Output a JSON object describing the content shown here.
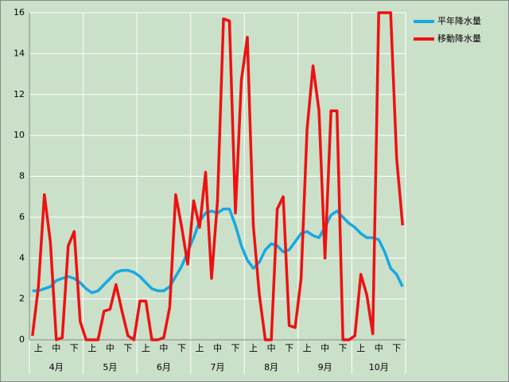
{
  "chart_data": {
    "type": "line",
    "categories": [
      null,
      "上",
      null,
      null,
      "中",
      null,
      null,
      "下",
      null,
      null,
      "上",
      null,
      null,
      "中",
      null,
      null,
      "下",
      null,
      null,
      "上",
      null,
      null,
      "中",
      null,
      null,
      "下",
      null,
      null,
      "上",
      null,
      null,
      "中",
      null,
      null,
      "下",
      null,
      null,
      "上",
      null,
      null,
      "中",
      null,
      null,
      "下",
      null,
      null,
      "上",
      null,
      null,
      "中",
      null,
      null,
      "下",
      null,
      null,
      "上",
      null,
      null,
      "中",
      null,
      null,
      "下",
      null
    ],
    "groups": [
      "4月",
      "5月",
      "6月",
      "7月",
      "8月",
      "9月",
      "10月"
    ],
    "ylim": [
      0,
      16
    ],
    "yticks": [
      0,
      2,
      4,
      6,
      8,
      10,
      12,
      14,
      16
    ],
    "grid": true,
    "legend": "right",
    "series": [
      {
        "name": "平年降水量",
        "color": "#17a8e3",
        "values": [
          2.4,
          2.4,
          2.5,
          2.6,
          2.9,
          3.0,
          3.1,
          3.0,
          2.8,
          2.5,
          2.3,
          2.4,
          2.7,
          3.0,
          3.3,
          3.4,
          3.4,
          3.3,
          3.1,
          2.8,
          2.5,
          2.4,
          2.4,
          2.6,
          3.1,
          3.6,
          4.3,
          5.0,
          5.8,
          6.2,
          6.3,
          6.2,
          6.4,
          6.4,
          5.6,
          4.6,
          3.9,
          3.5,
          3.8,
          4.4,
          4.7,
          4.6,
          4.3,
          4.4,
          4.8,
          5.2,
          5.3,
          5.1,
          5.0,
          5.5,
          6.1,
          6.3,
          6.0,
          5.7,
          5.5,
          5.2,
          5.0,
          5.0,
          4.9,
          4.3,
          3.5,
          3.2,
          2.6
        ]
      },
      {
        "name": "移動降水量",
        "color": "#ee1111",
        "values": [
          0.2,
          2.6,
          7.1,
          4.8,
          0,
          0.1,
          4.6,
          5.3,
          0.9,
          0,
          0,
          0,
          1.4,
          1.5,
          2.7,
          1.4,
          0.2,
          0,
          1.9,
          1.9,
          0,
          0,
          0.1,
          1.6,
          7.1,
          5.5,
          3.7,
          6.8,
          5.5,
          8.2,
          3.0,
          6.8,
          15.7,
          15.6,
          6.2,
          12.7,
          14.8,
          5.6,
          2.2,
          0,
          0,
          6.4,
          7.0,
          0.7,
          0.6,
          3.0,
          10.3,
          13.4,
          11.2,
          4.0,
          11.2,
          11.2,
          0,
          0,
          0.2,
          3.2,
          2.2,
          0.3,
          16,
          16,
          16,
          8.9,
          5.6
        ]
      }
    ]
  }
}
